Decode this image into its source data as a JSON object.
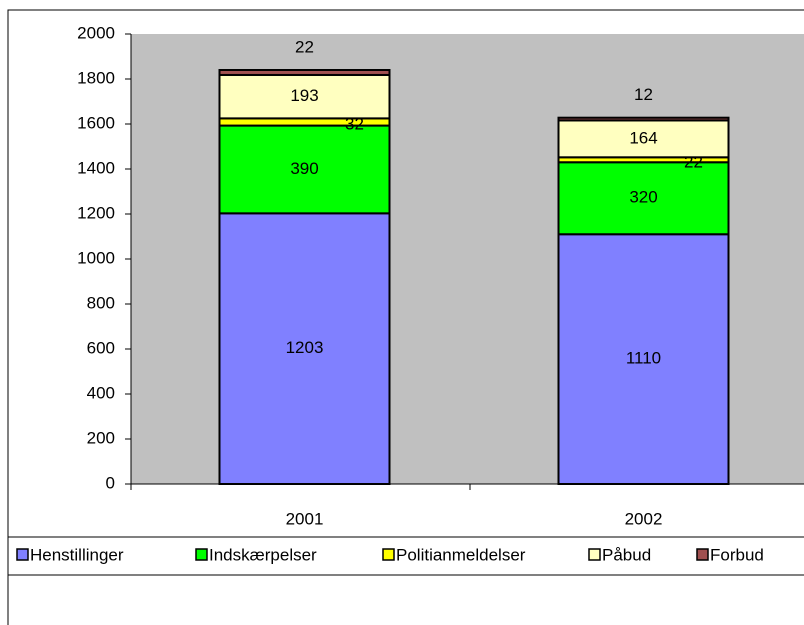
{
  "chart_data": {
    "type": "stacked_bar",
    "categories": [
      "2001",
      "2002"
    ],
    "series": [
      {
        "name": "Henstillinger",
        "color": "#8080ff",
        "values": [
          1203,
          1110
        ]
      },
      {
        "name": "Indskærpelser",
        "color": "#00ff00",
        "values": [
          390,
          320
        ]
      },
      {
        "name": "Politianmeldelser",
        "color": "#ffff00",
        "values": [
          32,
          22
        ]
      },
      {
        "name": "Påbud",
        "color": "#ffffc0",
        "values": [
          193,
          164
        ]
      },
      {
        "name": "Forbud",
        "color": "#a05050",
        "values": [
          22,
          12
        ]
      }
    ],
    "ylim": [
      0,
      2000
    ],
    "yticks": [
      0,
      200,
      400,
      600,
      800,
      1000,
      1200,
      1400,
      1600,
      1800,
      2000
    ],
    "plot_background": "#c0c0c0",
    "legend": "bottom"
  }
}
